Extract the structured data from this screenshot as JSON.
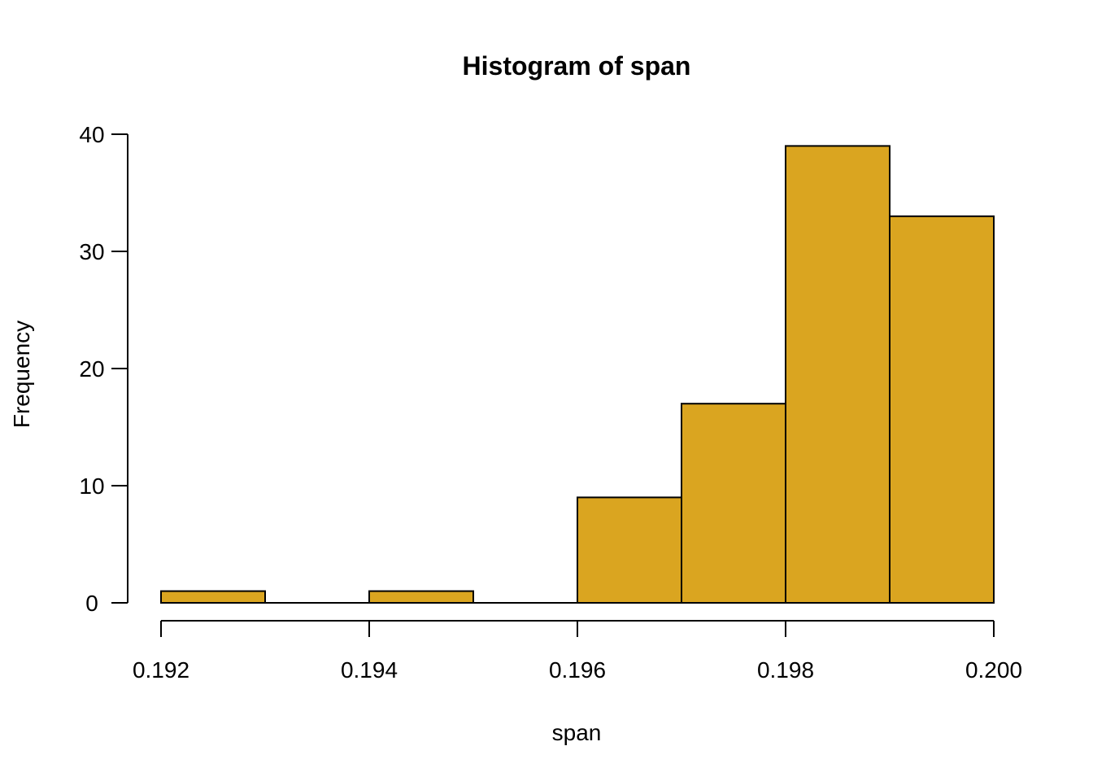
{
  "chart_data": {
    "type": "bar",
    "title": "Histogram of span",
    "xlabel": "span",
    "ylabel": "Frequency",
    "bar_color": "#DAA520",
    "bins": [
      {
        "start": 0.192,
        "end": 0.193,
        "count": 1
      },
      {
        "start": 0.193,
        "end": 0.194,
        "count": 0
      },
      {
        "start": 0.194,
        "end": 0.195,
        "count": 1
      },
      {
        "start": 0.195,
        "end": 0.196,
        "count": 0
      },
      {
        "start": 0.196,
        "end": 0.197,
        "count": 9
      },
      {
        "start": 0.197,
        "end": 0.198,
        "count": 17
      },
      {
        "start": 0.198,
        "end": 0.199,
        "count": 39
      },
      {
        "start": 0.199,
        "end": 0.2,
        "count": 33
      }
    ],
    "xlim": [
      0.192,
      0.2
    ],
    "ylim": [
      0,
      40
    ],
    "x_ticks": [
      "0.192",
      "0.194",
      "0.196",
      "0.198",
      "0.200"
    ],
    "y_ticks": [
      "0",
      "10",
      "20",
      "30",
      "40"
    ],
    "grid": false,
    "legend": "none"
  }
}
